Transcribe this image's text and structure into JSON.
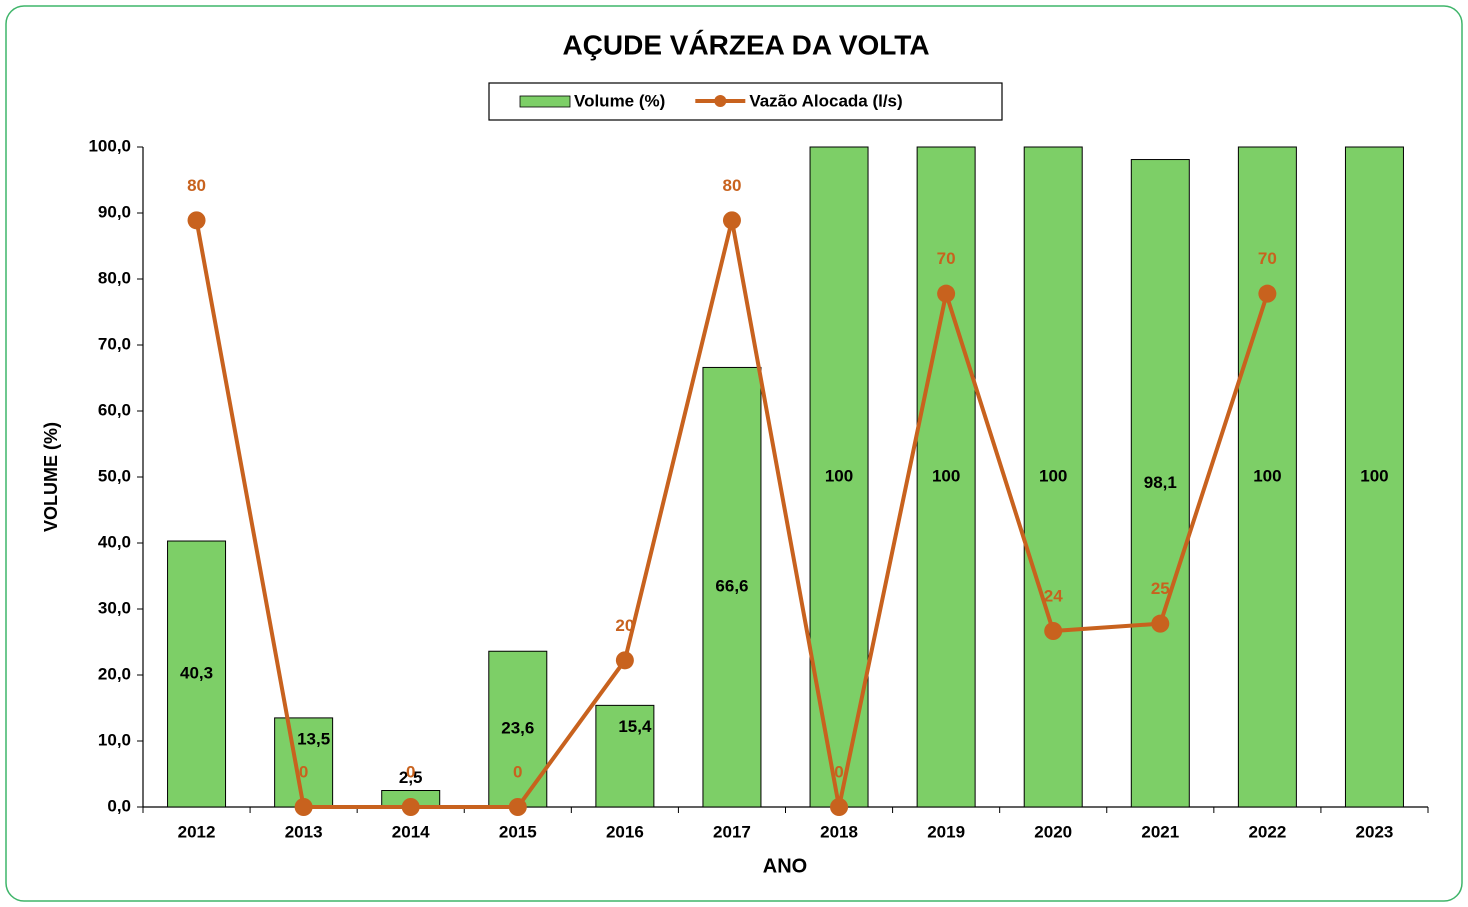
{
  "chart_data": {
    "type": "bar-line",
    "title": "AÇUDE VÁRZEA DA VOLTA",
    "xlabel": "ANO",
    "ylabel": "VOLUME (%)",
    "categories": [
      "2012",
      "2013",
      "2014",
      "2015",
      "2016",
      "2017",
      "2018",
      "2019",
      "2020",
      "2021",
      "2022",
      "2023"
    ],
    "series": [
      {
        "name": "Volume (%)",
        "type": "bar",
        "color": "#7dcf67",
        "values": [
          40.3,
          13.5,
          2.5,
          23.6,
          15.4,
          66.6,
          100,
          100,
          100,
          98.1,
          100,
          100
        ],
        "value_labels": [
          "40,3",
          "13,5",
          "2,5",
          "23,6",
          "15,4",
          "66,6",
          "100",
          "100",
          "100",
          "98,1",
          "100",
          "100"
        ]
      },
      {
        "name": "Vazão Alocada (l/s)",
        "type": "line",
        "axis": "y2",
        "color": "#c8621e",
        "values": [
          80,
          0,
          0,
          0,
          20,
          80,
          0,
          70,
          24,
          25,
          70,
          null
        ]
      }
    ],
    "ylim": [
      0,
      100
    ],
    "yticks": [
      {
        "value": 0,
        "label": "0,0"
      },
      {
        "value": 10,
        "label": "10,0"
      },
      {
        "value": 20,
        "label": "20,0"
      },
      {
        "value": 30,
        "label": "30,0"
      },
      {
        "value": 40,
        "label": "40,0"
      },
      {
        "value": 50,
        "label": "50,0"
      },
      {
        "value": 60,
        "label": "60,0"
      },
      {
        "value": 70,
        "label": "70,0"
      },
      {
        "value": 80,
        "label": "80,0"
      },
      {
        "value": 90,
        "label": "90,0"
      },
      {
        "value": 100,
        "label": "100,0"
      }
    ],
    "y2lim": [
      0,
      90
    ],
    "legend": "top",
    "grid": false
  }
}
